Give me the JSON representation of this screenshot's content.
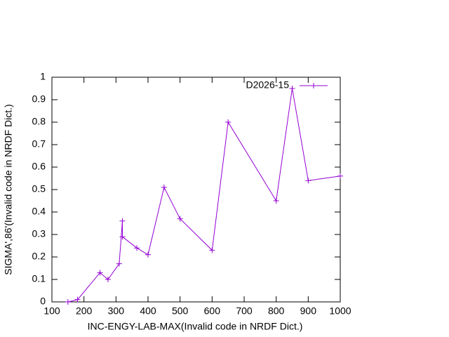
{
  "chart_data": {
    "type": "line",
    "x_label": "INC-ENGY-LAB-MAX(Invalid code in NRDF Dict.)",
    "y_label": "SIGMA',86'(Invalid code in NRDF Dict.)",
    "xlim": [
      100,
      1000
    ],
    "xticks": [
      100,
      200,
      300,
      400,
      500,
      600,
      700,
      800,
      900,
      1000
    ],
    "ylim": [
      0,
      1
    ],
    "yticks": [
      0,
      0.1,
      0.2,
      0.3,
      0.4,
      0.5,
      0.6,
      0.7,
      0.8,
      0.9,
      1
    ],
    "legend": "top-right",
    "series": [
      {
        "name": "D2026-15",
        "color": "#9400d3",
        "x": [
          150,
          180,
          250,
          275,
          310,
          320,
          320,
          365,
          400,
          450,
          500,
          600,
          650,
          800,
          850,
          900,
          1000
        ],
        "values": [
          0,
          0.01,
          0.13,
          0.1,
          0.17,
          0.36,
          0.29,
          0.24,
          0.21,
          0.51,
          0.37,
          0.23,
          0.8,
          0.45,
          0.95,
          0.54,
          0.56
        ]
      }
    ]
  }
}
